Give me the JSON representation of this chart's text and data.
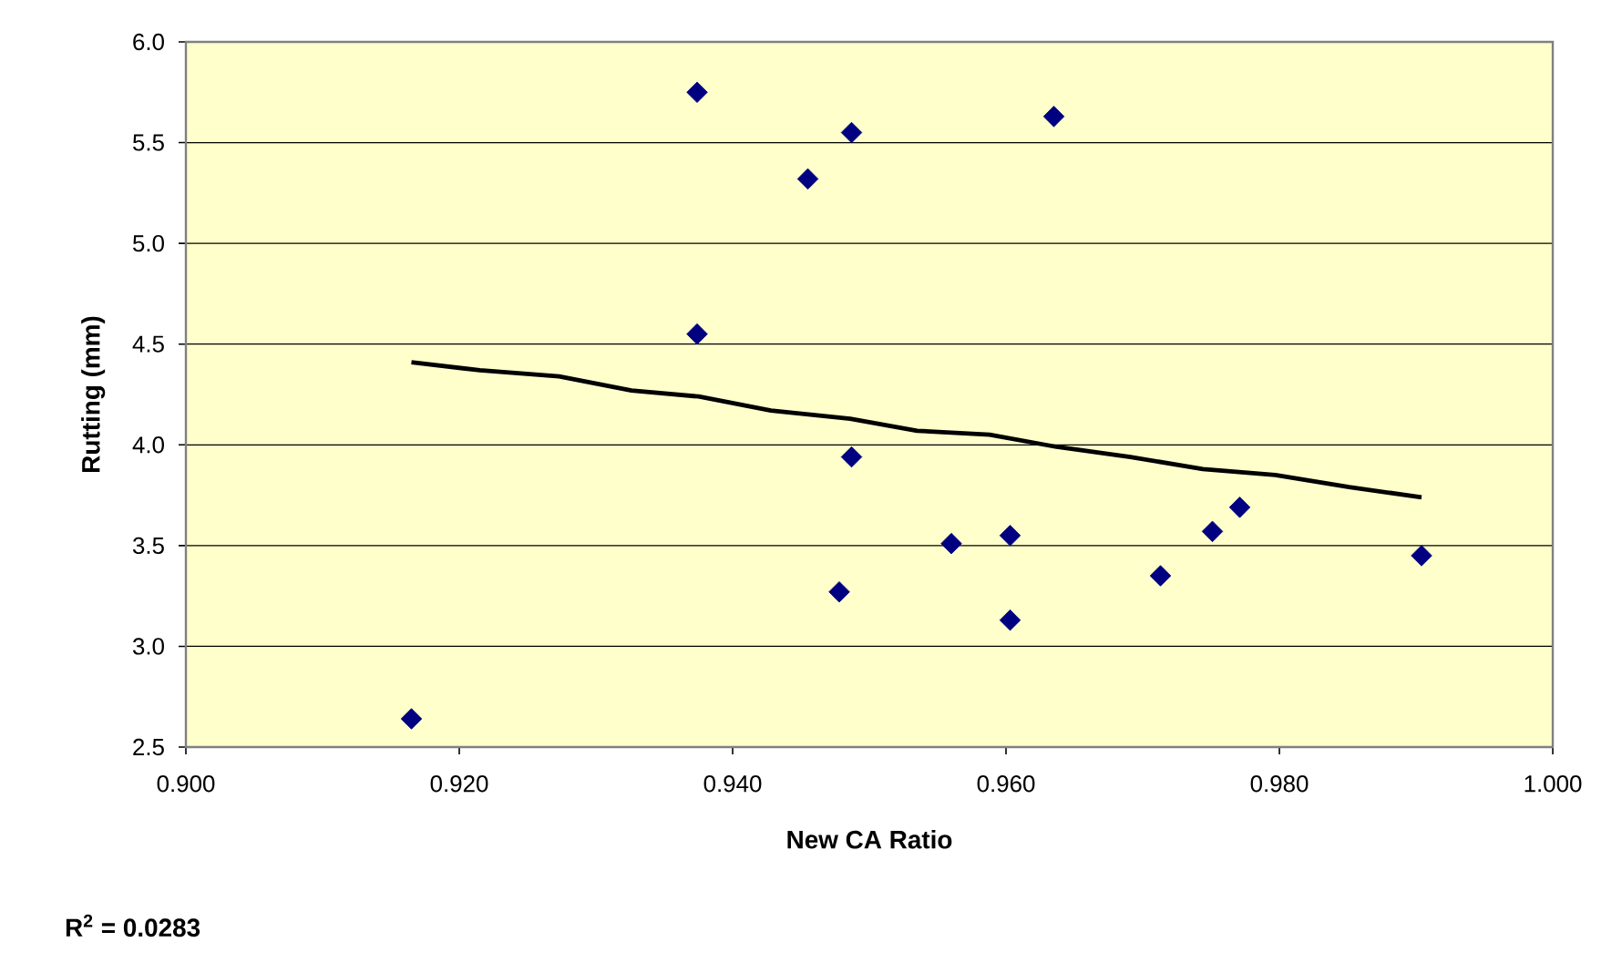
{
  "chart_data": {
    "type": "scatter",
    "xlabel": "New CA Ratio",
    "ylabel": "Rutting (mm)",
    "xlim": [
      0.9,
      1.0
    ],
    "ylim": [
      2.5,
      6.0
    ],
    "xticks": [
      {
        "value": 0.9,
        "label": "0.900"
      },
      {
        "value": 0.92,
        "label": "0.920"
      },
      {
        "value": 0.94,
        "label": "0.940"
      },
      {
        "value": 0.96,
        "label": "0.960"
      },
      {
        "value": 0.98,
        "label": "0.980"
      },
      {
        "value": 1.0,
        "label": "1.000"
      }
    ],
    "yticks": [
      {
        "value": 2.5,
        "label": "2.5"
      },
      {
        "value": 3.0,
        "label": "3.0"
      },
      {
        "value": 3.5,
        "label": "3.5"
      },
      {
        "value": 4.0,
        "label": "4.0"
      },
      {
        "value": 4.5,
        "label": "4.5"
      },
      {
        "value": 5.0,
        "label": "5.0"
      },
      {
        "value": 5.5,
        "label": "5.5"
      },
      {
        "value": 6.0,
        "label": "6.0"
      }
    ],
    "grid": "y",
    "series": [
      {
        "marker": "diamond",
        "color": "#000080",
        "x": [
          0.9165,
          0.9374,
          0.9374,
          0.9455,
          0.9487,
          0.9487,
          0.9478,
          0.956,
          0.9603,
          0.9603,
          0.9635,
          0.9713,
          0.9751,
          0.9771,
          0.9904
        ],
        "values": [
          2.64,
          5.75,
          4.55,
          5.32,
          5.55,
          3.94,
          3.27,
          3.51,
          3.55,
          3.13,
          5.63,
          3.35,
          3.57,
          3.69,
          3.45
        ]
      },
      {
        "type": "line",
        "marker": "none",
        "color": "#000000",
        "x": [
          0.9165,
          0.9215,
          0.9273,
          0.9326,
          0.9375,
          0.9428,
          0.9486,
          0.9535,
          0.9588,
          0.9637,
          0.9691,
          0.9744,
          0.9797,
          0.9851,
          0.9904
        ],
        "values": [
          4.41,
          4.37,
          4.34,
          4.27,
          4.24,
          4.17,
          4.13,
          4.07,
          4.05,
          3.99,
          3.94,
          3.88,
          3.85,
          3.79,
          3.74
        ]
      }
    ],
    "annotations": [
      "R$^{2}$ = 0.0283"
    ]
  }
}
